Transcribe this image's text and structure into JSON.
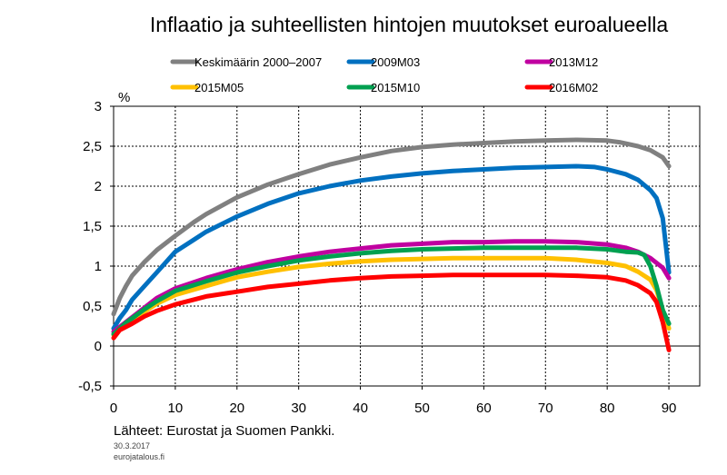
{
  "title": "Inflaatio ja suhteellisten hintojen muutokset euroalueella",
  "unit_label": "%",
  "source_label": "Lähteet: Eurostat ja Suomen Pankki.",
  "date_label": "30.3.2017",
  "site_label": "eurojatalous.fi",
  "chart_data": {
    "type": "line",
    "title": "Inflaatio ja suhteellisten hintojen muutokset euroalueella",
    "xlabel": "",
    "ylabel": "%",
    "xlim": [
      0,
      95
    ],
    "ylim": [
      -0.5,
      3
    ],
    "x_ticks": [
      "0",
      "10",
      "20",
      "30",
      "40",
      "50",
      "60",
      "70",
      "80",
      "90"
    ],
    "y_ticks": [
      "-0,5",
      "0",
      "0,5",
      "1",
      "1,5",
      "2",
      "2,5",
      "3"
    ],
    "grid": true,
    "legend_position": "top",
    "series": [
      {
        "name": "Keskimäärin 2000–2007",
        "color": "#808080",
        "points": [
          [
            0,
            0.4
          ],
          [
            1,
            0.6
          ],
          [
            2,
            0.75
          ],
          [
            3,
            0.88
          ],
          [
            5,
            1.05
          ],
          [
            7,
            1.2
          ],
          [
            10,
            1.38
          ],
          [
            13,
            1.55
          ],
          [
            15,
            1.65
          ],
          [
            20,
            1.86
          ],
          [
            25,
            2.02
          ],
          [
            30,
            2.15
          ],
          [
            35,
            2.27
          ],
          [
            40,
            2.36
          ],
          [
            45,
            2.44
          ],
          [
            50,
            2.49
          ],
          [
            55,
            2.52
          ],
          [
            60,
            2.54
          ],
          [
            65,
            2.56
          ],
          [
            70,
            2.57
          ],
          [
            75,
            2.58
          ],
          [
            80,
            2.57
          ],
          [
            82,
            2.55
          ],
          [
            85,
            2.5
          ],
          [
            87,
            2.45
          ],
          [
            89,
            2.36
          ],
          [
            90,
            2.25
          ]
        ]
      },
      {
        "name": "2009M03",
        "color": "#0070C0",
        "points": [
          [
            0,
            0.22
          ],
          [
            1,
            0.35
          ],
          [
            2,
            0.45
          ],
          [
            3,
            0.58
          ],
          [
            5,
            0.75
          ],
          [
            7,
            0.92
          ],
          [
            10,
            1.18
          ],
          [
            13,
            1.33
          ],
          [
            15,
            1.43
          ],
          [
            20,
            1.62
          ],
          [
            25,
            1.78
          ],
          [
            30,
            1.91
          ],
          [
            35,
            2.0
          ],
          [
            40,
            2.07
          ],
          [
            45,
            2.12
          ],
          [
            50,
            2.16
          ],
          [
            55,
            2.19
          ],
          [
            60,
            2.21
          ],
          [
            65,
            2.23
          ],
          [
            70,
            2.24
          ],
          [
            75,
            2.25
          ],
          [
            78,
            2.24
          ],
          [
            80,
            2.21
          ],
          [
            83,
            2.15
          ],
          [
            85,
            2.08
          ],
          [
            87,
            1.95
          ],
          [
            88,
            1.85
          ],
          [
            89,
            1.6
          ],
          [
            90,
            0.92
          ]
        ]
      },
      {
        "name": "2013M12",
        "color": "#C000A0",
        "points": [
          [
            0,
            0.18
          ],
          [
            2,
            0.3
          ],
          [
            5,
            0.48
          ],
          [
            7,
            0.6
          ],
          [
            10,
            0.72
          ],
          [
            15,
            0.85
          ],
          [
            20,
            0.96
          ],
          [
            25,
            1.05
          ],
          [
            30,
            1.12
          ],
          [
            35,
            1.18
          ],
          [
            40,
            1.22
          ],
          [
            45,
            1.26
          ],
          [
            50,
            1.28
          ],
          [
            55,
            1.3
          ],
          [
            60,
            1.3
          ],
          [
            65,
            1.31
          ],
          [
            70,
            1.31
          ],
          [
            75,
            1.3
          ],
          [
            80,
            1.27
          ],
          [
            83,
            1.23
          ],
          [
            85,
            1.18
          ],
          [
            87,
            1.1
          ],
          [
            89,
            0.98
          ],
          [
            90,
            0.85
          ]
        ]
      },
      {
        "name": "2015M05",
        "color": "#FFC000",
        "points": [
          [
            0,
            0.14
          ],
          [
            2,
            0.27
          ],
          [
            5,
            0.43
          ],
          [
            7,
            0.53
          ],
          [
            10,
            0.64
          ],
          [
            15,
            0.75
          ],
          [
            20,
            0.86
          ],
          [
            25,
            0.93
          ],
          [
            30,
            0.99
          ],
          [
            35,
            1.03
          ],
          [
            40,
            1.06
          ],
          [
            45,
            1.08
          ],
          [
            50,
            1.09
          ],
          [
            55,
            1.1
          ],
          [
            60,
            1.1
          ],
          [
            65,
            1.1
          ],
          [
            70,
            1.1
          ],
          [
            75,
            1.08
          ],
          [
            80,
            1.04
          ],
          [
            83,
            1.0
          ],
          [
            85,
            0.93
          ],
          [
            87,
            0.83
          ],
          [
            88,
            0.7
          ],
          [
            89,
            0.45
          ],
          [
            90,
            0.22
          ]
        ]
      },
      {
        "name": "2015M10",
        "color": "#00A050",
        "points": [
          [
            0,
            0.15
          ],
          [
            2,
            0.29
          ],
          [
            5,
            0.46
          ],
          [
            7,
            0.56
          ],
          [
            10,
            0.69
          ],
          [
            15,
            0.81
          ],
          [
            20,
            0.92
          ],
          [
            25,
            1.0
          ],
          [
            30,
            1.07
          ],
          [
            35,
            1.12
          ],
          [
            40,
            1.16
          ],
          [
            45,
            1.19
          ],
          [
            50,
            1.21
          ],
          [
            55,
            1.22
          ],
          [
            60,
            1.23
          ],
          [
            65,
            1.23
          ],
          [
            70,
            1.23
          ],
          [
            75,
            1.23
          ],
          [
            80,
            1.21
          ],
          [
            83,
            1.18
          ],
          [
            85,
            1.17
          ],
          [
            86,
            1.14
          ],
          [
            87,
            1.0
          ],
          [
            88,
            0.75
          ],
          [
            89,
            0.45
          ],
          [
            90,
            0.28
          ]
        ]
      },
      {
        "name": "2016M02",
        "color": "#FF0000",
        "points": [
          [
            0,
            0.1
          ],
          [
            1,
            0.2
          ],
          [
            3,
            0.28
          ],
          [
            5,
            0.37
          ],
          [
            7,
            0.44
          ],
          [
            10,
            0.52
          ],
          [
            15,
            0.62
          ],
          [
            20,
            0.68
          ],
          [
            25,
            0.74
          ],
          [
            30,
            0.78
          ],
          [
            35,
            0.82
          ],
          [
            40,
            0.85
          ],
          [
            45,
            0.87
          ],
          [
            50,
            0.88
          ],
          [
            55,
            0.89
          ],
          [
            60,
            0.89
          ],
          [
            65,
            0.89
          ],
          [
            70,
            0.89
          ],
          [
            75,
            0.88
          ],
          [
            80,
            0.86
          ],
          [
            83,
            0.82
          ],
          [
            85,
            0.76
          ],
          [
            87,
            0.66
          ],
          [
            88,
            0.55
          ],
          [
            89,
            0.3
          ],
          [
            90,
            -0.05
          ]
        ]
      }
    ]
  }
}
